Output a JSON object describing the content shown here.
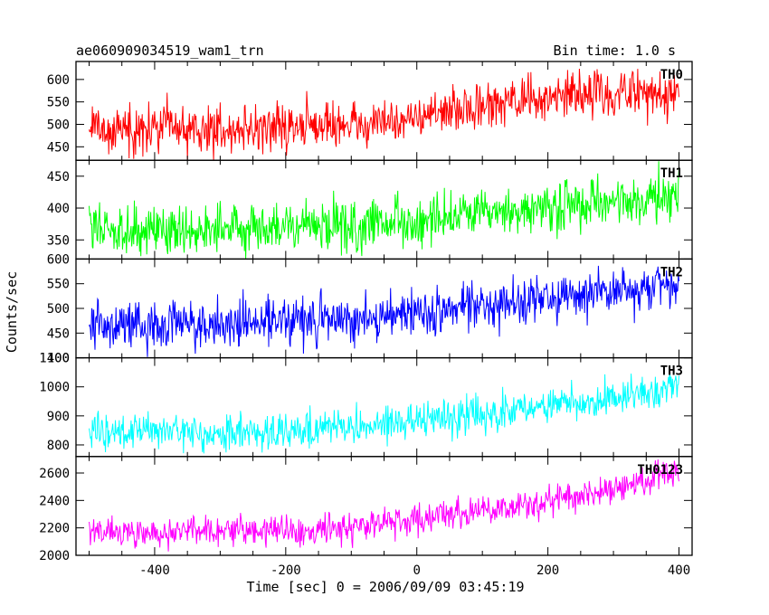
{
  "header": {
    "title": "ae060909034519_wam1_trn",
    "bin_time": "Bin time: 1.0 s"
  },
  "chart_data": {
    "type": "line",
    "title": "ae060909034519_wam1_trn",
    "subtitle": "Bin time: 1.0 s",
    "xlabel": "Time [sec] 0 = 2006/09/09 03:45:19",
    "ylabel": "Counts/sec",
    "xlim": [
      -520,
      420
    ],
    "x_ticks": [
      -400,
      -200,
      0,
      200,
      400
    ],
    "x_range": [
      -500,
      400
    ],
    "bin_seconds": 1.0,
    "panels": [
      {
        "name": "TH0",
        "color": "#ff0000",
        "ylim": [
          420,
          640
        ],
        "y_ticks": [
          450,
          500,
          550,
          600
        ],
        "trend_x": [
          -500,
          -300,
          -100,
          0,
          100,
          200,
          300,
          400
        ],
        "trend_y": [
          490,
          488,
          500,
          515,
          540,
          560,
          568,
          575
        ],
        "noise_sd": 26,
        "y_min": 420,
        "y_max": 640
      },
      {
        "name": "TH1",
        "color": "#00ff00",
        "ylim": [
          320,
          475
        ],
        "y_ticks": [
          350,
          400,
          450
        ],
        "trend_x": [
          -500,
          -300,
          -100,
          0,
          100,
          200,
          300,
          400
        ],
        "trend_y": [
          368,
          368,
          372,
          378,
          388,
          398,
          408,
          418
        ],
        "noise_sd": 20,
        "y_min": 320,
        "y_max": 475
      },
      {
        "name": "TH2",
        "color": "#0000ff",
        "ylim": [
          400,
          600
        ],
        "y_ticks": [
          400,
          450,
          500,
          550,
          600
        ],
        "trend_x": [
          -500,
          -300,
          -100,
          0,
          100,
          200,
          300,
          400
        ],
        "trend_y": [
          465,
          470,
          480,
          490,
          505,
          520,
          535,
          550
        ],
        "noise_sd": 24,
        "y_min": 400,
        "y_max": 600
      },
      {
        "name": "TH3",
        "color": "#00ffff",
        "ylim": [
          760,
          1100
        ],
        "y_ticks": [
          800,
          900,
          1000,
          1100
        ],
        "trend_x": [
          -500,
          -300,
          -100,
          0,
          100,
          200,
          300,
          400
        ],
        "trend_y": [
          845,
          840,
          860,
          880,
          905,
          930,
          965,
          1010
        ],
        "noise_sd": 30,
        "y_min": 760,
        "y_max": 1100
      },
      {
        "name": "TH0123",
        "color": "#ff00ff",
        "ylim": [
          2000,
          2720
        ],
        "y_ticks": [
          2000,
          2200,
          2400,
          2600
        ],
        "trend_x": [
          -500,
          -300,
          -100,
          0,
          100,
          200,
          300,
          400
        ],
        "trend_y": [
          2165,
          2170,
          2210,
          2260,
          2320,
          2390,
          2480,
          2620
        ],
        "noise_sd": 55,
        "y_min": 2000,
        "y_max": 2720
      }
    ]
  }
}
